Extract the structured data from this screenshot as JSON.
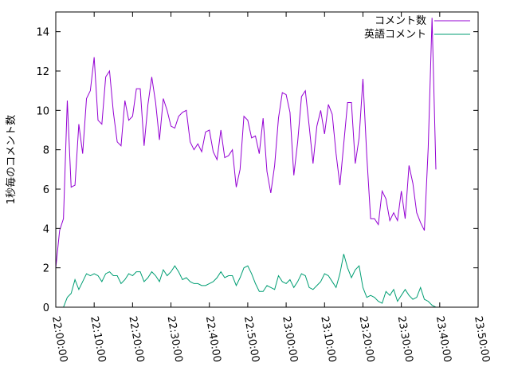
{
  "chart_data": {
    "type": "line",
    "ylabel": "1秒毎のコメント数",
    "xlabel": "",
    "title": "",
    "xlim": [
      "22:00:00",
      "23:50:00"
    ],
    "ylim": [
      0,
      15
    ],
    "x_ticks": [
      "22:00:00",
      "22:10:00",
      "22:20:00",
      "22:30:00",
      "22:40:00",
      "22:50:00",
      "23:00:00",
      "23:10:00",
      "23:20:00",
      "23:30:00",
      "23:40:00",
      "23:50:00"
    ],
    "y_ticks": [
      0,
      2,
      4,
      6,
      8,
      10,
      12,
      14
    ],
    "legend_position": "top-right",
    "grid": false,
    "sample_interval_minutes": 1,
    "x_start": "22:00:00",
    "series": [
      {
        "name": "コメント数",
        "color": "#9400d3",
        "values": [
          2.0,
          3.9,
          4.5,
          10.5,
          6.1,
          6.2,
          9.3,
          7.8,
          10.6,
          11.0,
          12.7,
          9.5,
          9.3,
          11.7,
          12.0,
          9.9,
          8.4,
          8.2,
          10.5,
          9.5,
          9.7,
          11.1,
          11.1,
          8.2,
          10.3,
          11.7,
          10.4,
          8.5,
          10.6,
          10.0,
          9.2,
          9.1,
          9.7,
          9.9,
          10.0,
          8.4,
          8.0,
          8.3,
          7.9,
          8.9,
          9.0,
          7.9,
          7.5,
          9.0,
          7.6,
          7.7,
          8.0,
          6.1,
          7.0,
          9.7,
          9.5,
          8.6,
          8.7,
          7.8,
          9.6,
          6.9,
          5.8,
          7.2,
          9.6,
          10.9,
          10.8,
          9.9,
          6.7,
          8.4,
          10.7,
          11.0,
          9.2,
          7.3,
          9.2,
          10.0,
          8.8,
          10.3,
          9.8,
          7.8,
          6.2,
          8.3,
          10.4,
          10.4,
          7.3,
          8.6,
          11.6,
          7.7,
          4.5,
          4.5,
          4.2,
          5.9,
          5.5,
          4.4,
          4.8,
          4.4,
          5.9,
          4.5,
          7.2,
          6.3,
          4.8,
          4.3,
          3.9,
          8.1,
          14.7,
          7.0
        ]
      },
      {
        "name": "英語コメント",
        "color": "#009e73",
        "values": [
          0.0,
          0.0,
          0.0,
          0.5,
          0.7,
          1.4,
          0.9,
          1.3,
          1.7,
          1.6,
          1.7,
          1.6,
          1.3,
          1.7,
          1.8,
          1.6,
          1.6,
          1.2,
          1.4,
          1.7,
          1.6,
          1.8,
          1.8,
          1.3,
          1.5,
          1.8,
          1.6,
          1.3,
          1.9,
          1.6,
          1.8,
          2.1,
          1.8,
          1.4,
          1.5,
          1.3,
          1.2,
          1.2,
          1.1,
          1.1,
          1.2,
          1.3,
          1.5,
          1.8,
          1.5,
          1.6,
          1.6,
          1.1,
          1.5,
          2.0,
          2.1,
          1.7,
          1.2,
          0.8,
          0.8,
          1.1,
          1.0,
          0.9,
          1.6,
          1.3,
          1.2,
          1.4,
          1.0,
          1.3,
          1.7,
          1.6,
          1.0,
          0.9,
          1.1,
          1.3,
          1.7,
          1.6,
          1.3,
          1.0,
          1.7,
          2.7,
          2.0,
          1.5,
          1.9,
          2.1,
          1.0,
          0.5,
          0.6,
          0.5,
          0.3,
          0.2,
          0.8,
          0.6,
          0.9,
          0.3,
          0.6,
          0.9,
          0.6,
          0.4,
          0.5,
          1.0,
          0.4,
          0.3,
          0.1,
          0.0
        ]
      }
    ]
  }
}
